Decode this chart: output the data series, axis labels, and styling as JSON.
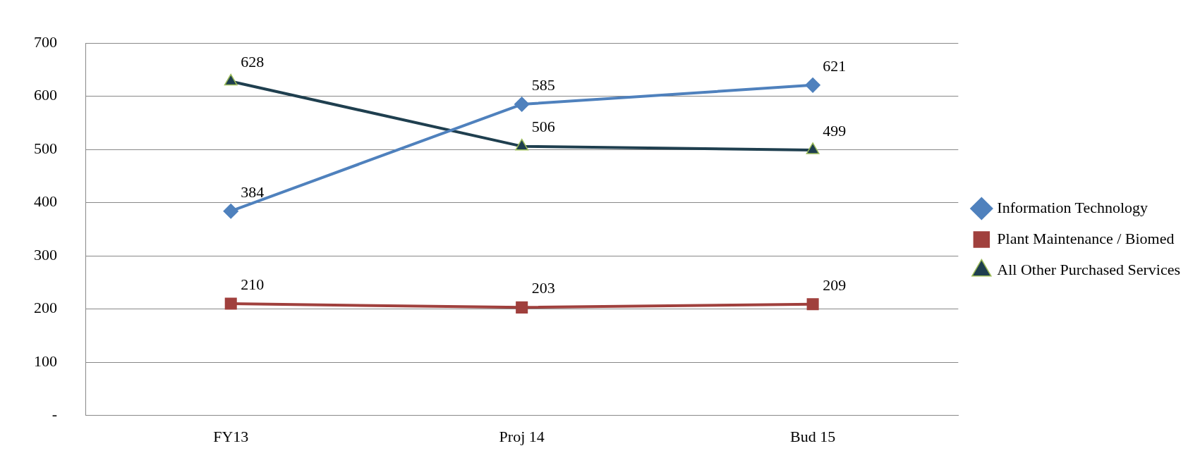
{
  "chart_data": {
    "type": "line",
    "categories": [
      "FY13",
      "Proj 14",
      "Bud 15"
    ],
    "series": [
      {
        "name": "Information Technology",
        "color": "#4f81bd",
        "values": [
          384,
          585,
          621
        ],
        "marker": "diamond"
      },
      {
        "name": "Plant Maintenance / Biomed",
        "color": "#a0403d",
        "values": [
          210,
          203,
          209
        ],
        "marker": "square"
      },
      {
        "name": "All Other Purchased Services",
        "color": "#1f3f4f",
        "values": [
          628,
          506,
          499
        ],
        "marker": "triangle"
      }
    ],
    "ylim": [
      0,
      700
    ],
    "yticks": [
      {
        "value": 0,
        "label": "-"
      },
      100,
      200,
      300,
      400,
      500,
      600,
      700
    ],
    "grid": "y",
    "legend": "right",
    "data_labels": true,
    "line_style": "solid"
  }
}
